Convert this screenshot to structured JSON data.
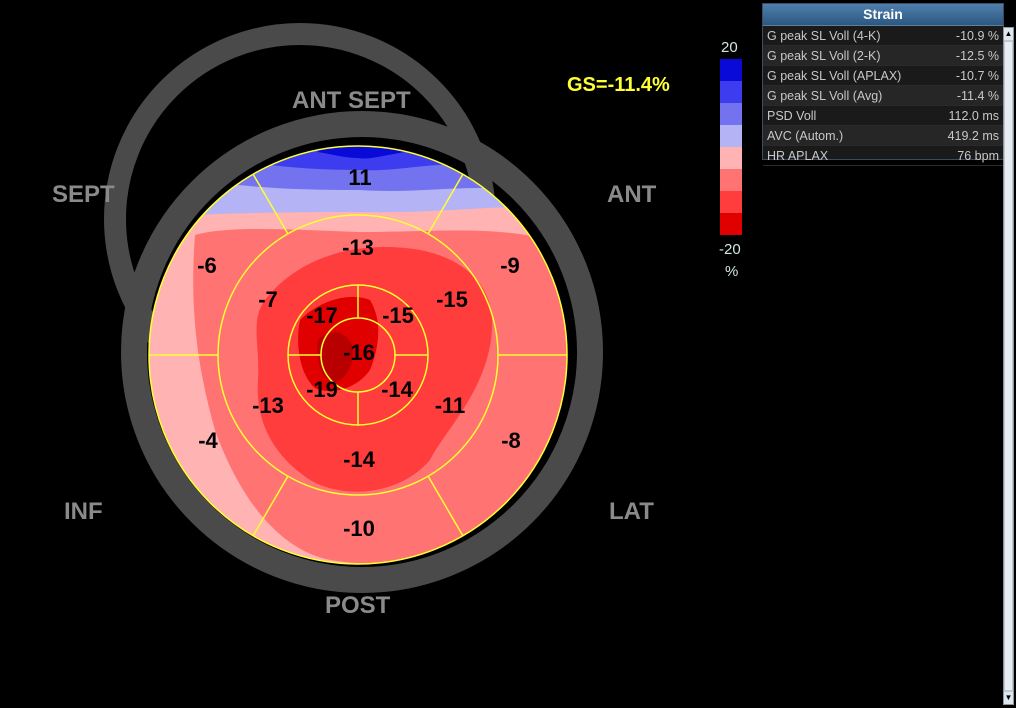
{
  "global_strain": "GS=-11.4%",
  "wall_labels": {
    "ant_sept": "ANT  SEPT",
    "sept": "SEPT",
    "ant": "ANT",
    "inf": "INF",
    "lat": "LAT",
    "post": "POST"
  },
  "segments": {
    "basal": [
      "11",
      "-9",
      "-8",
      "-10",
      "-4",
      "-6"
    ],
    "mid": [
      "-13",
      "-15",
      "-11",
      "-14",
      "-13",
      "-7"
    ],
    "apical": [
      "-15",
      "-14",
      "-19",
      "-17"
    ],
    "apex": "-16"
  },
  "color_scale": {
    "max_label": "20",
    "min_label": "-20",
    "unit": "%",
    "colors": [
      "#0a0ad8",
      "#3d3def",
      "#7373f0",
      "#b3b3f5",
      "#ffb3b3",
      "#ff7373",
      "#ff3d3d",
      "#e00000"
    ]
  },
  "strain_panel": {
    "title": "Strain",
    "rows": [
      {
        "label": "G peak SL Voll (4-K)",
        "value": "-10.9 %"
      },
      {
        "label": "G peak SL Voll (2-K)",
        "value": "-12.5 %"
      },
      {
        "label": "G peak SL Voll (APLAX)",
        "value": "-10.7 %"
      },
      {
        "label": "G peak SL Voll (Avg)",
        "value": "-11.4 %"
      },
      {
        "label": "PSD Voll",
        "value": "112.0 ms"
      },
      {
        "label": "AVC (Autom.)",
        "value": "419.2 ms"
      },
      {
        "label": "HR APLAX",
        "value": "76 bpm"
      }
    ]
  }
}
